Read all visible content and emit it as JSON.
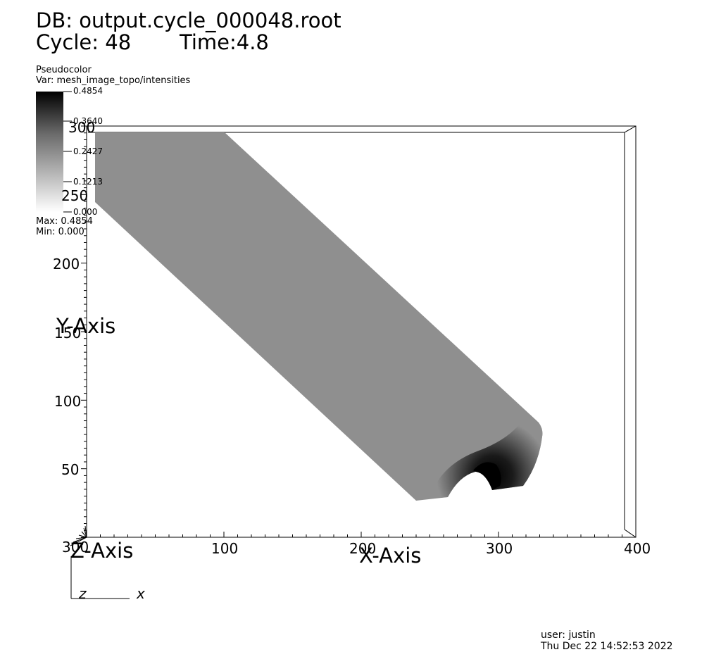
{
  "header": {
    "db_label": "DB: output.cycle_000048.root",
    "cycle_label": "Cycle: 48",
    "time_label": "Time:4.8"
  },
  "legend": {
    "plot_type": "Pseudocolor",
    "var_label": "Var: mesh_image_topo/intensities",
    "ticks": [
      "0.4854",
      "0.3640",
      "0.2427",
      "0.1213",
      "0.000"
    ],
    "max_label": "Max:  0.4854",
    "min_label": "Min:  0.000",
    "colormap": [
      "#000000",
      "#ffffff"
    ]
  },
  "axes": {
    "x_title": "X-Axis",
    "y_title": "Y-Axis",
    "z_title": "Z-Axis",
    "x_ticks": [
      "100",
      "200",
      "300",
      "400"
    ],
    "y_ticks": [
      "50",
      "100",
      "150",
      "200",
      "250",
      "300"
    ],
    "origin_label": "300",
    "x_range": [
      0,
      400
    ],
    "y_range": [
      0,
      300
    ]
  },
  "triad": {
    "z_label": "z",
    "x_label": "x"
  },
  "footer": {
    "user_label": "user: justin",
    "timestamp": "Thu Dec 22 14:52:53 2022"
  },
  "colors": {
    "volume_fill": "#8f8f8f",
    "volume_dark": "#000000",
    "background": "#ffffff"
  }
}
